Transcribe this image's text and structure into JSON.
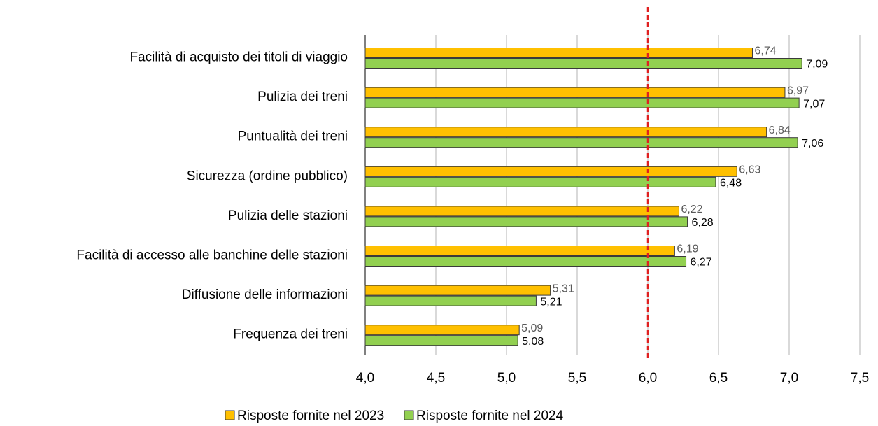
{
  "chart_data": {
    "type": "bar",
    "orientation": "horizontal",
    "categories": [
      "Facilità di acquisto dei titoli di viaggio",
      "Pulizia dei treni",
      "Puntualità dei treni",
      "Sicurezza (ordine pubblico)",
      "Pulizia delle stazioni",
      "Facilità di accesso alle banchine delle stazioni",
      "Diffusione delle informazioni",
      "Frequenza dei treni"
    ],
    "series": [
      {
        "name": "Risposte fornite nel 2023",
        "color": "#FFC000",
        "label_color": "#595959",
        "values": [
          6.74,
          6.97,
          6.84,
          6.63,
          6.22,
          6.19,
          5.31,
          5.09
        ],
        "value_labels": [
          "6,74",
          "6,97",
          "6,84",
          "6,63",
          "6,22",
          "6,19",
          "5,31",
          "5,09"
        ]
      },
      {
        "name": "Risposte fornite nel 2024",
        "color": "#92D050",
        "label_color": "#000000",
        "values": [
          7.09,
          7.07,
          7.06,
          6.48,
          6.28,
          6.27,
          5.21,
          5.08
        ],
        "value_labels": [
          "7,09",
          "7,07",
          "7,06",
          "6,48",
          "6,28",
          "6,27",
          "5,21",
          "5,08"
        ]
      }
    ],
    "xlim": [
      4.0,
      7.5
    ],
    "xticks": [
      {
        "value": 4.0,
        "label": "4,0"
      },
      {
        "value": 4.5,
        "label": "4,5"
      },
      {
        "value": 5.0,
        "label": "5,0"
      },
      {
        "value": 5.5,
        "label": "5,5"
      },
      {
        "value": 6.0,
        "label": "6,0"
      },
      {
        "value": 6.5,
        "label": "6,5"
      },
      {
        "value": 7.0,
        "label": "7,0"
      },
      {
        "value": 7.5,
        "label": "7,5"
      }
    ],
    "grid": true,
    "reference_line": 6.0,
    "reference_line_color": "#E02020",
    "legend": "bottom"
  }
}
